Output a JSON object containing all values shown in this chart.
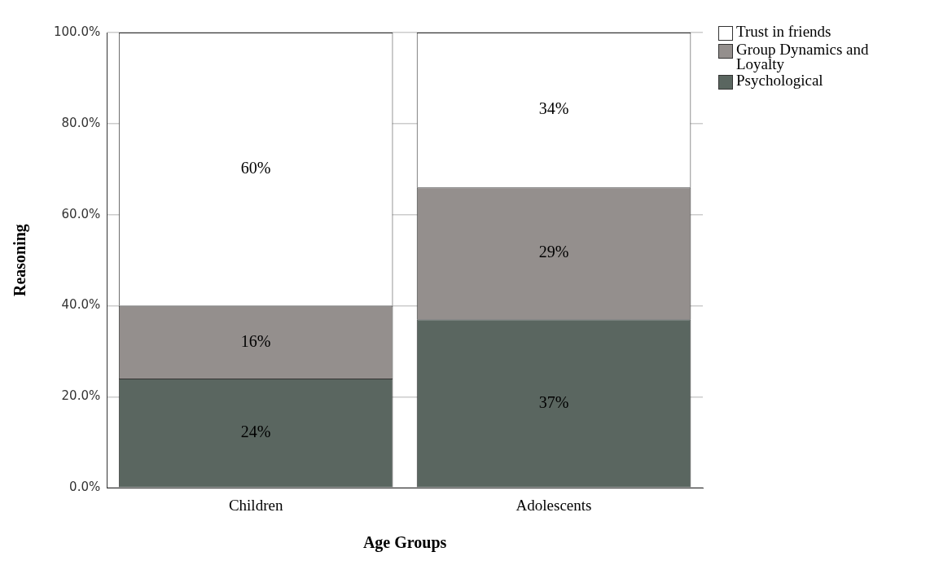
{
  "chart_data": {
    "type": "bar",
    "stacked": true,
    "xlabel": "Age Groups",
    "ylabel": "Reasoning",
    "categories": [
      "Children",
      "Adolescents"
    ],
    "series": [
      {
        "name": "Psychological",
        "color": "#5a6660",
        "values": [
          24,
          37
        ],
        "value_labels": [
          "24%",
          "37%"
        ]
      },
      {
        "name": "Group Dynamics and Loyalty",
        "color": "#948f8d",
        "values": [
          16,
          29
        ],
        "value_labels": [
          "16%",
          "29%"
        ]
      },
      {
        "name": "Trust in friends",
        "color": "#ffffff",
        "values": [
          60,
          34
        ],
        "value_labels": [
          "60%",
          "34%"
        ]
      }
    ],
    "ylim": [
      0,
      100
    ],
    "yticks": [
      {
        "value": 0,
        "label": "0.0%"
      },
      {
        "value": 20,
        "label": "20.0%"
      },
      {
        "value": 40,
        "label": "40.0%"
      },
      {
        "value": 60,
        "label": "60.0%"
      },
      {
        "value": 80,
        "label": "80.0%"
      },
      {
        "value": 100,
        "label": "100.0%"
      }
    ],
    "grid": "y",
    "legend": "top right"
  }
}
